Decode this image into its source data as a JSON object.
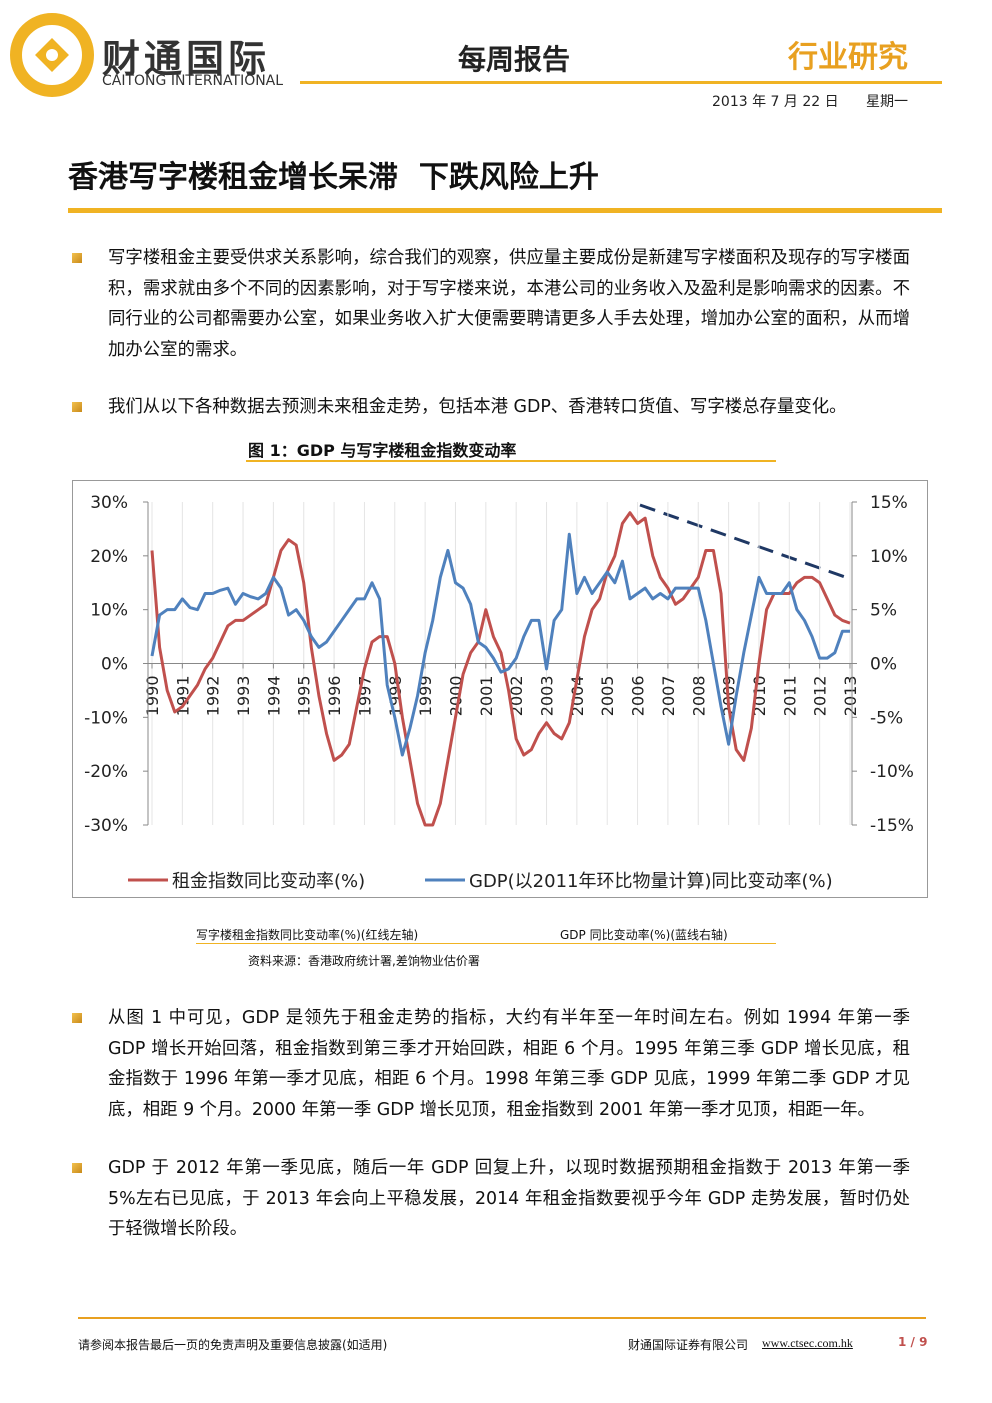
{
  "header": {
    "logo_name": "财通国际",
    "logo_en": "CAITONG INTERNATIONAL",
    "report_type": "每周报告",
    "section": "行业研究",
    "date": "2013 年 7 月 22 日",
    "weekday": "星期一"
  },
  "title": "香港写字楼租金增长呆滞  下跌风险上升",
  "paragraphs": [
    "写字楼租金主要受供求关系影响，综合我们的观察，供应量主要成份是新建写字楼面积及现存的写字楼面积，需求就由多个不同的因素影响，对于写字楼来说，本港公司的业务收入及盈利是影响需求的因素。不同行业的公司都需要办公室，如果业务收入扩大便需要聘请更多人手去处理，增加办公室的面积，从而增加办公室的需求。",
    "我们从以下各种数据去预测未来租金走势，包括本港 GDP、香港转口货值、写字楼总存量变化。",
    "从图 1 中可见，GDP 是领先于租金走势的指标，大约有半年至一年时间左右。例如 1994 年第一季 GDP 增长开始回落，租金指数到第三季才开始回跌，相距 6 个月。1995 年第三季 GDP 增长见底，租金指数于 1996 年第一季才见底，相距 6 个月。1998 年第三季 GDP 见底，1999 年第二季 GDP 才见底，相距 9 个月。2000 年第一季 GDP 增长见顶，租金指数到 2001 年第一季才见顶，相距一年。",
    "GDP 于 2012 年第一季见底，随后一年 GDP 回复上升，以现时数据预期租金指数于 2013 年第一季 5%左右已见底，于 2013 年会向上平稳发展，2014 年租金指数要视乎今年 GDP 走势发展，暂时仍处于轻微增长阶段。"
  ],
  "figure": {
    "caption": "图 1：GDP 与写字楼租金指数变动率",
    "notes": [
      "写字楼租金指数同比变动率(%)(红线左轴)",
      "GDP 同比变动率(%)(蓝线右轴)"
    ],
    "source": "资料来源：香港政府统计署,差饷物业估价署"
  },
  "chart_data": {
    "type": "line",
    "x": [
      1990,
      1990.25,
      1990.5,
      1990.75,
      1991,
      1991.25,
      1991.5,
      1991.75,
      1992,
      1992.25,
      1992.5,
      1992.75,
      1993,
      1993.25,
      1993.5,
      1993.75,
      1994,
      1994.25,
      1994.5,
      1994.75,
      1995,
      1995.25,
      1995.5,
      1995.75,
      1996,
      1996.25,
      1996.5,
      1996.75,
      1997,
      1997.25,
      1997.5,
      1997.75,
      1998,
      1998.25,
      1998.5,
      1998.75,
      1999,
      1999.25,
      1999.5,
      1999.75,
      2000,
      2000.25,
      2000.5,
      2000.75,
      2001,
      2001.25,
      2001.5,
      2001.75,
      2002,
      2002.25,
      2002.5,
      2002.75,
      2003,
      2003.25,
      2003.5,
      2003.75,
      2004,
      2004.25,
      2004.5,
      2004.75,
      2005,
      2005.25,
      2005.5,
      2005.75,
      2006,
      2006.25,
      2006.5,
      2006.75,
      2007,
      2007.25,
      2007.5,
      2007.75,
      2008,
      2008.25,
      2008.5,
      2008.75,
      2009,
      2009.25,
      2009.5,
      2009.75,
      2010,
      2010.25,
      2010.5,
      2010.75,
      2011,
      2011.25,
      2011.5,
      2011.75,
      2012,
      2012.25,
      2012.5,
      2012.75,
      2013
    ],
    "series": [
      {
        "name": "租金指数同比变动率(%)",
        "color": "#c0504d",
        "values": [
          21,
          3,
          -5,
          -9,
          -8,
          -6,
          -4,
          -1,
          1,
          4,
          7,
          8,
          8,
          9,
          10,
          11,
          16,
          21,
          23,
          22,
          15,
          3,
          -6,
          -13,
          -18,
          -17,
          -15,
          -8,
          -1,
          4,
          5,
          5,
          0,
          -10,
          -18,
          -26,
          -30,
          -30,
          -26,
          -18,
          -10,
          -2,
          2,
          4,
          10,
          5,
          2,
          -5,
          -14,
          -17,
          -16,
          -13,
          -11,
          -13,
          -14,
          -11,
          -3,
          5,
          10,
          12,
          17,
          20,
          26,
          28,
          26,
          27,
          20,
          16,
          14,
          11,
          12,
          14,
          16,
          21,
          21,
          13,
          -8,
          -16,
          -18,
          -12,
          0,
          10,
          13,
          13,
          13,
          15,
          16,
          16,
          15,
          12,
          9,
          8,
          7.5
        ]
      },
      {
        "name": "GDP(以2011年环比物量计算)同比变动率(%)",
        "color": "#4f81bd",
        "axis": "y2",
        "values": [
          0.7,
          4.5,
          5,
          5,
          6,
          5.2,
          5,
          6.5,
          6.5,
          6.8,
          7,
          5.5,
          6.5,
          6.2,
          6,
          6.5,
          8,
          7,
          4.5,
          5,
          4,
          2.5,
          1.5,
          2,
          3,
          4,
          5,
          6,
          6,
          7.5,
          6,
          -2,
          -5,
          -8.5,
          -6,
          -3,
          1,
          4,
          8,
          10.5,
          7.5,
          7,
          5.5,
          2,
          1.5,
          0.5,
          -0.8,
          -0.5,
          0.5,
          2.5,
          4,
          4,
          -0.5,
          4,
          5,
          12,
          6.5,
          8,
          6.5,
          7.5,
          8.5,
          7.5,
          9.5,
          6,
          6.5,
          7,
          6,
          6.5,
          6,
          7,
          7,
          7,
          7,
          4,
          0,
          -4,
          -7.5,
          -3,
          1,
          4.5,
          8,
          6.5,
          6.5,
          6.5,
          7.5,
          5,
          4,
          2.5,
          0.5,
          0.5,
          1,
          3,
          3
        ]
      }
    ],
    "xlim": [
      1990,
      2013
    ],
    "xticks": [
      1990,
      1991,
      1992,
      1993,
      1994,
      1995,
      1996,
      1997,
      1998,
      1999,
      2000,
      2001,
      2002,
      2003,
      2004,
      2005,
      2006,
      2007,
      2008,
      2009,
      2010,
      2011,
      2012,
      2013
    ],
    "ylim": [
      -30,
      30
    ],
    "yticks": [
      {
        "value": -30,
        "label": "-30%"
      },
      {
        "value": -20,
        "label": "-20%"
      },
      {
        "value": -10,
        "label": "-10%"
      },
      {
        "value": 0,
        "label": "0%"
      },
      {
        "value": 10,
        "label": "10%"
      },
      {
        "value": 20,
        "label": "20%"
      },
      {
        "value": 30,
        "label": "30%"
      }
    ],
    "y2lim": [
      -15,
      15
    ],
    "y2ticks": [
      {
        "value": -15,
        "label": "-15%"
      },
      {
        "value": -10,
        "label": "-10%"
      },
      {
        "value": -5,
        "label": "-5%"
      },
      {
        "value": 0,
        "label": "0%"
      },
      {
        "value": 5,
        "label": "5%"
      },
      {
        "value": 10,
        "label": "10%"
      },
      {
        "value": 15,
        "label": "15%"
      }
    ],
    "grid": true,
    "legend": "bottom"
  },
  "footer": {
    "disclaimer": "请参阅本报告最后一页的免责声明及重要信息披露(如适用)",
    "company": "财通国际证券有限公司",
    "url": "www.ctsec.com.hk",
    "page": "1 / 9"
  }
}
